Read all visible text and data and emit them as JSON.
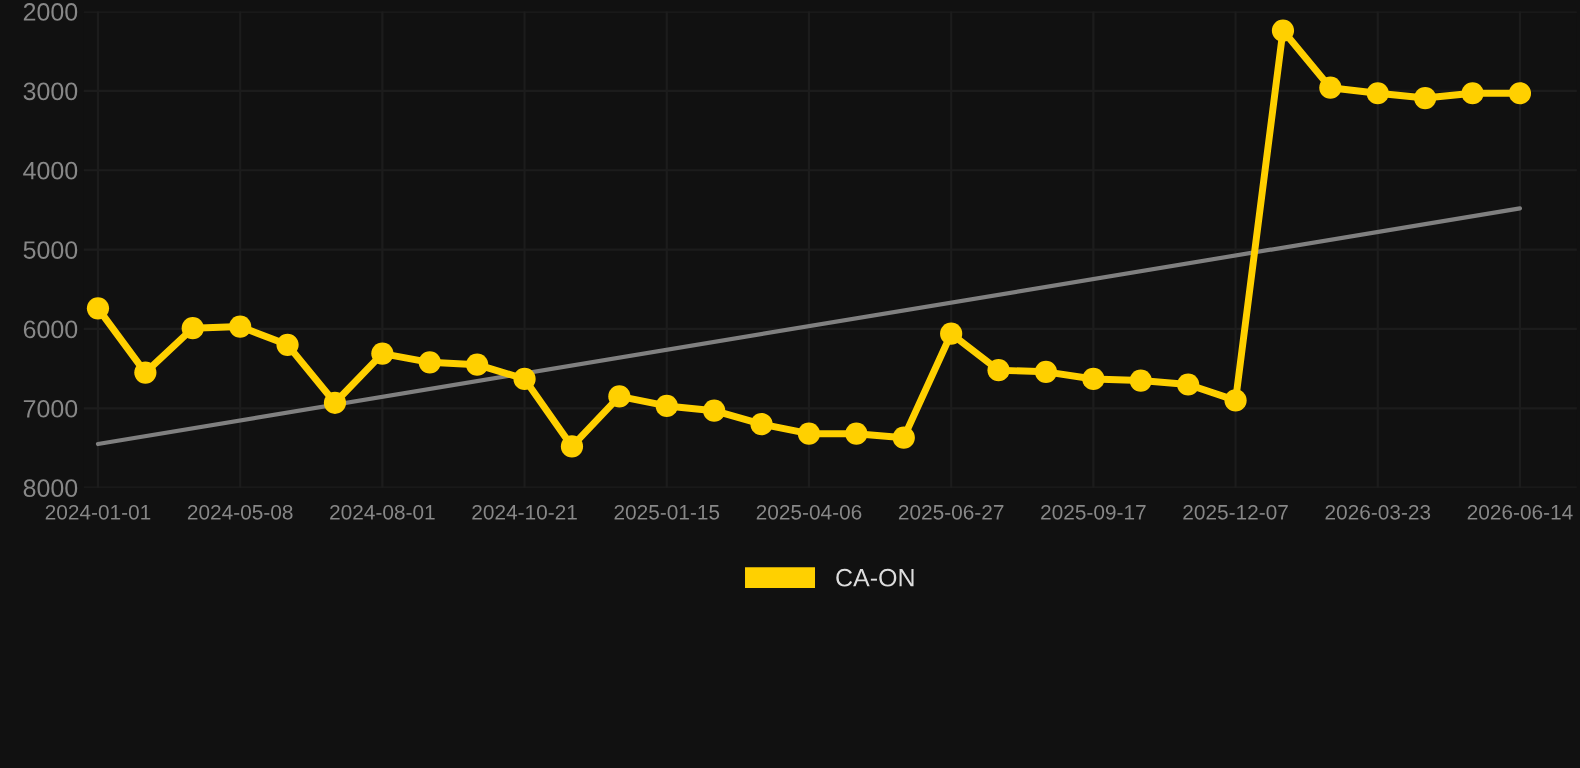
{
  "chart_data": {
    "type": "line",
    "categories": [
      "2024-01-01",
      null,
      null,
      "2024-05-08",
      null,
      null,
      "2024-08-01",
      null,
      null,
      "2024-10-21",
      null,
      null,
      "2025-01-15",
      null,
      null,
      "2025-04-06",
      null,
      null,
      "2025-06-27",
      null,
      null,
      "2025-09-17",
      null,
      null,
      "2025-12-07",
      null,
      null,
      "2026-03-23",
      null,
      null,
      "2026-06-14"
    ],
    "series": [
      {
        "name": "CA-ON",
        "color": "#ffd000",
        "marker": "circle",
        "values": [
          5740,
          6550,
          5990,
          5970,
          6200,
          6930,
          6310,
          6420,
          6450,
          6630,
          7480,
          6850,
          6970,
          7030,
          7200,
          7320,
          7320,
          7370,
          6060,
          6520,
          6540,
          6630,
          6650,
          6700,
          6900,
          2240,
          2960,
          3030,
          3090,
          3030,
          3030
        ]
      },
      {
        "type": "line",
        "color": "#808080",
        "marker": "none",
        "values": [
          7450,
          null,
          null,
          null,
          null,
          null,
          null,
          null,
          null,
          null,
          null,
          null,
          null,
          null,
          null,
          null,
          null,
          null,
          null,
          null,
          null,
          null,
          null,
          null,
          null,
          null,
          null,
          null,
          null,
          null,
          4480
        ]
      }
    ],
    "ylim": [
      8000,
      2000
    ],
    "yticks": [
      2000,
      3000,
      4000,
      5000,
      6000,
      7000,
      8000
    ],
    "grid": true,
    "legend": "bottom",
    "line_style": "solid"
  }
}
